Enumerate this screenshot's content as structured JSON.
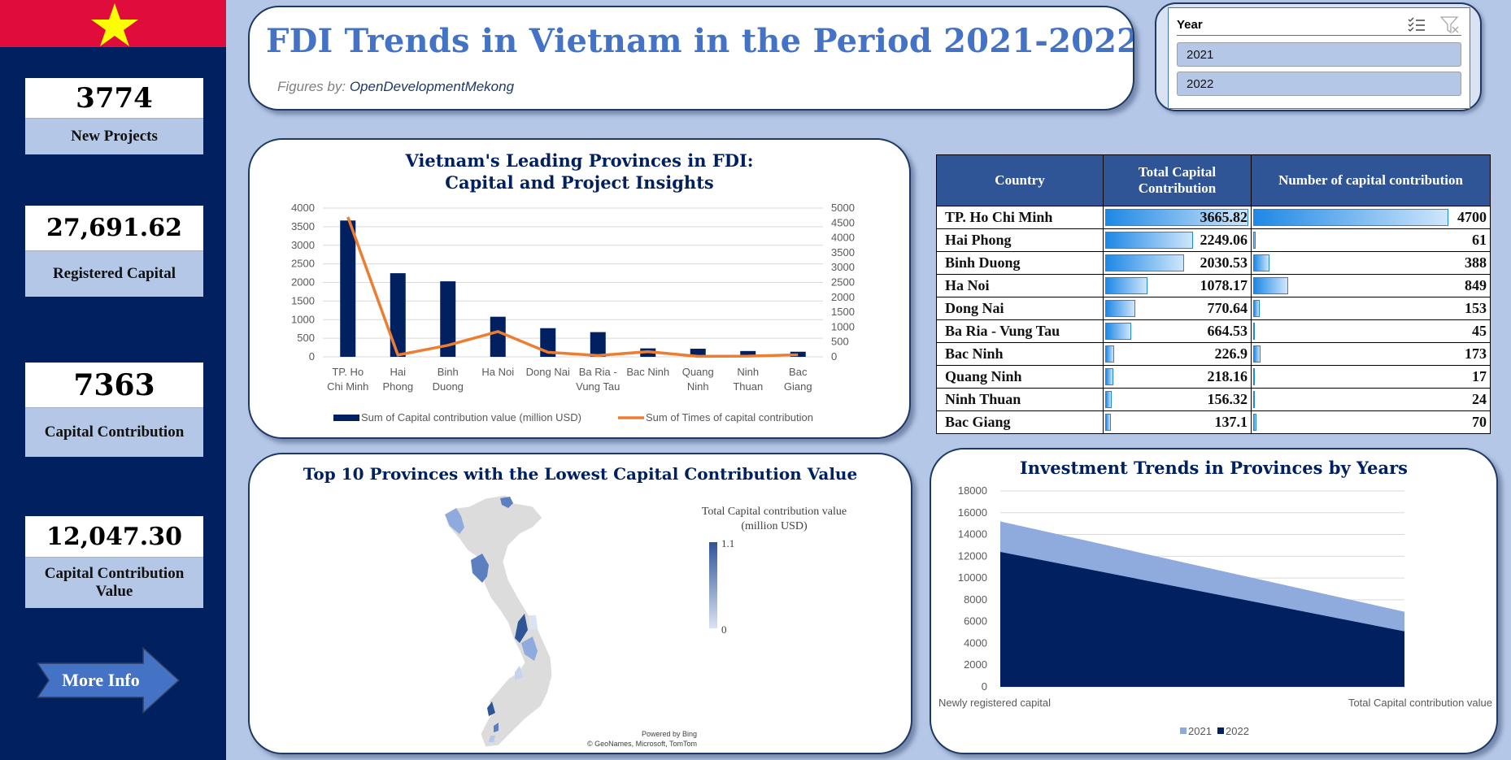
{
  "sidebar": {
    "flag": {
      "background": "#e00c3c",
      "star_color": "#ffff00"
    },
    "kpis": [
      {
        "value": "3774",
        "label": "New Projects"
      },
      {
        "value": "27,691.62",
        "label": "Registered Capital"
      },
      {
        "value": "7363",
        "label": "Capital Contribution"
      },
      {
        "value": "12,047.30",
        "label": "Capital Contribution Value"
      }
    ],
    "more_info_label": "More Info"
  },
  "header": {
    "title": "FDI Trends in Vietnam in the Period 2021-2022",
    "figures_prefix": "Figures by: ",
    "figures_source": "OpenDevelopmentMekong"
  },
  "slicer": {
    "title": "Year",
    "items": [
      "2021",
      "2022"
    ],
    "icons": [
      "multi-select-icon",
      "clear-filter-icon"
    ]
  },
  "table": {
    "headers": [
      "Country",
      "Total Capital Contribution",
      "Number of capital contribution"
    ],
    "rows": [
      {
        "name": "TP. Ho Chi Minh",
        "capital": "3665.82",
        "count": "4700"
      },
      {
        "name": "Hai Phong",
        "capital": "2249.06",
        "count": "61"
      },
      {
        "name": "Binh Duong",
        "capital": "2030.53",
        "count": "388"
      },
      {
        "name": "Ha Noi",
        "capital": "1078.17",
        "count": "849"
      },
      {
        "name": "Dong Nai",
        "capital": "770.64",
        "count": "153"
      },
      {
        "name": "Ba Ria - Vung Tau",
        "capital": "664.53",
        "count": "45"
      },
      {
        "name": "Bac Ninh",
        "capital": "226.9",
        "count": "173"
      },
      {
        "name": "Quang Ninh",
        "capital": "218.16",
        "count": "17"
      },
      {
        "name": "Ninh Thuan",
        "capital": "156.32",
        "count": "24"
      },
      {
        "name": "Bac Giang",
        "capital": "137.1",
        "count": "70"
      }
    ]
  },
  "map": {
    "title": "Top 10 Provinces with the Lowest Capital Contribution Value",
    "legend_title_line1": "Total Capital contribution value",
    "legend_title_line2": "(million USD)",
    "legend_max": "1.1",
    "legend_min": "0",
    "credit_line1": "Powered by Bing",
    "credit_line2": "© GeoNames, Microsoft, TomTom"
  },
  "chart_data": [
    {
      "type": "bar+line",
      "title": "Vietnam's Leading Provinces in FDI: Capital and Project Insights",
      "categories": [
        "TP. Ho Chi Minh",
        "Hai Phong",
        "Binh Duong",
        "Ha Noi",
        "Dong Nai",
        "Ba Ria - Vung Tau",
        "Bac Ninh",
        "Quang Ninh",
        "Ninh Thuan",
        "Bac Giang"
      ],
      "category_labels": [
        [
          "TP. Ho",
          "Chi Minh"
        ],
        [
          "Hai",
          "Phong"
        ],
        [
          "Binh",
          "Duong"
        ],
        [
          "Ha Noi"
        ],
        [
          "Dong Nai"
        ],
        [
          "Ba Ria -",
          "Vung Tau"
        ],
        [
          "Bac Ninh"
        ],
        [
          "Quang",
          "Ninh"
        ],
        [
          "Ninh",
          "Thuan"
        ],
        [
          "Bac",
          "Giang"
        ]
      ],
      "series": [
        {
          "name": "Sum of Capital contribution value (million USD)",
          "type": "bar",
          "axis": "left",
          "color": "#002060",
          "values": [
            3665.82,
            2249.06,
            2030.53,
            1078.17,
            770.64,
            664.53,
            226.9,
            218.16,
            156.32,
            137.1
          ]
        },
        {
          "name": "Sum of Times of capital contribution",
          "type": "line",
          "axis": "right",
          "color": "#ed7d31",
          "values": [
            4700,
            61,
            388,
            849,
            153,
            45,
            173,
            17,
            24,
            70
          ]
        }
      ],
      "y_left": {
        "min": 0,
        "max": 4000,
        "ticks": [
          0,
          500,
          1000,
          1500,
          2000,
          2500,
          3000,
          3500,
          4000
        ]
      },
      "y_right": {
        "min": 0,
        "max": 5000,
        "ticks": [
          0,
          500,
          1000,
          1500,
          2000,
          2500,
          3000,
          3500,
          4000,
          4500,
          5000
        ]
      },
      "grid": true,
      "legend_position": "bottom"
    },
    {
      "type": "area",
      "title": "Investment Trends in Provinces by Years",
      "categories": [
        "Newly registered capital",
        "Total Capital contribution value"
      ],
      "stacked": true,
      "series": [
        {
          "name": "2021",
          "color": "#8faadc",
          "values": [
            2800,
            1800
          ]
        },
        {
          "name": "2022",
          "color": "#002060",
          "values": [
            12400,
            5100
          ]
        }
      ],
      "ylim": [
        0,
        18000
      ],
      "y_ticks": [
        0,
        2000,
        4000,
        6000,
        8000,
        10000,
        12000,
        14000,
        16000,
        18000
      ],
      "grid": true,
      "legend_position": "bottom"
    }
  ]
}
